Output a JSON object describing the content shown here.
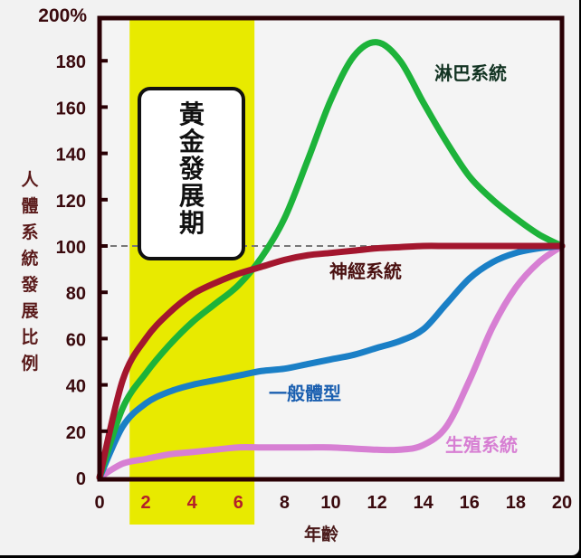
{
  "chart_data": {
    "type": "line",
    "title": "",
    "xlabel": "年齡",
    "ylabel": "人體系統發展比例",
    "xlim": [
      0,
      20
    ],
    "ylim": [
      0,
      200
    ],
    "x_ticks": [
      "0",
      "2",
      "4",
      "6",
      "8",
      "10",
      "12",
      "14",
      "16",
      "18",
      "20"
    ],
    "y_ticks": [
      "0",
      "20",
      "40",
      "60",
      "80",
      "100",
      "120",
      "140",
      "160",
      "180",
      "200%"
    ],
    "reference_line": {
      "y": 100,
      "style": "dashed",
      "color": "#777777"
    },
    "highlight_band": {
      "x_from": 1.3,
      "x_to": 6.7,
      "color": "#e8ea00",
      "label": "黃金發展期"
    },
    "x": [
      0,
      1,
      2,
      3,
      4,
      5,
      6,
      7,
      8,
      9,
      10,
      11,
      12,
      13,
      14,
      15,
      16,
      17,
      18,
      19,
      20
    ],
    "series": [
      {
        "name": "淋巴系統",
        "color": "#1db33a",
        "values": [
          0,
          30,
          45,
          57,
          67,
          75,
          83,
          95,
          112,
          137,
          163,
          182,
          188,
          180,
          162,
          145,
          130,
          120,
          112,
          105,
          100
        ]
      },
      {
        "name": "神經系統",
        "color": "#a3162e",
        "values": [
          0,
          42,
          60,
          71,
          79,
          84,
          88,
          91,
          94,
          96,
          97,
          98,
          99,
          99.5,
          100,
          100,
          100,
          100,
          100,
          100,
          100
        ]
      },
      {
        "name": "一般體型",
        "color": "#1a7fc6",
        "values": [
          0,
          22,
          32,
          37,
          40,
          42,
          44,
          46,
          47,
          49,
          51,
          53,
          56,
          59,
          64,
          75,
          86,
          93,
          97,
          99,
          100
        ]
      },
      {
        "name": "生殖系統",
        "color": "#d77fd3",
        "values": [
          0,
          6,
          8,
          10,
          11,
          12,
          13,
          13,
          13,
          13,
          13,
          12.5,
          12,
          12,
          14,
          22,
          42,
          65,
          82,
          93,
          100
        ]
      }
    ],
    "legend_position": "inline labels"
  },
  "labels": {
    "y_axis_title": "人體系統發展比例",
    "x_axis_title": "年齡",
    "golden_period": "黃金發展期",
    "lymph": "淋巴系統",
    "neural": "神經系統",
    "general": "一般體型",
    "reproductive": "生殖系統"
  }
}
